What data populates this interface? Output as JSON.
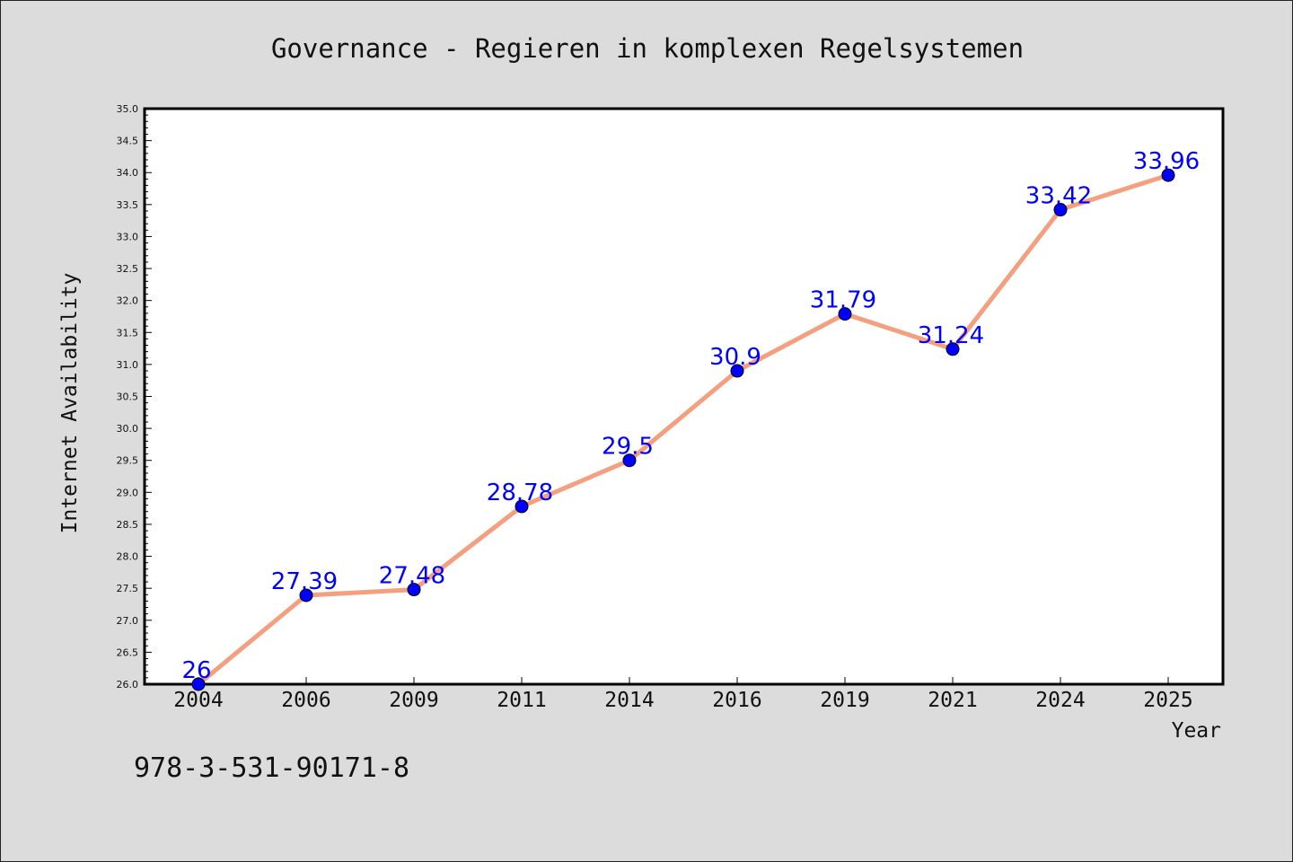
{
  "chart_data": {
    "type": "line",
    "title": "Governance - Regieren in komplexen Regelsystemen",
    "xlabel": "Year",
    "ylabel": "Internet Availability",
    "categories": [
      "2004",
      "2006",
      "2009",
      "2011",
      "2014",
      "2016",
      "2019",
      "2021",
      "2024",
      "2025"
    ],
    "series": [
      {
        "values": [
          26,
          27.39,
          27.48,
          28.78,
          29.5,
          30.9,
          31.79,
          31.24,
          33.42,
          33.96
        ],
        "labels": [
          "26",
          "27.39",
          "27.48",
          "28.78",
          "29.5",
          "30.9",
          "31.79",
          "31.24",
          "33.42",
          "33.96"
        ]
      }
    ],
    "ylim": [
      26.0,
      35.0
    ],
    "yticks": [
      "26.0",
      "26.5",
      "27.0",
      "27.5",
      "28.0",
      "28.5",
      "29.0",
      "29.5",
      "30.0",
      "30.5",
      "31.0",
      "31.5",
      "32.0",
      "32.5",
      "33.0",
      "33.5",
      "34.0",
      "34.5",
      "35.0"
    ],
    "grid": false,
    "line_color": "#f4a080",
    "marker_color": "#0000ff",
    "label_color": "#0000ff"
  },
  "footer": {
    "isbn": "978-3-531-90171-8"
  }
}
